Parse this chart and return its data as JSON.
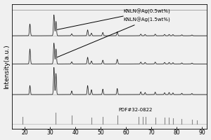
{
  "title": "",
  "xlabel": "",
  "ylabel": "Intensity(a.u.)",
  "xlim": [
    15,
    92
  ],
  "background_color": "#f0f0f0",
  "label1": "KNLN@Ag(0.5wt%)",
  "label2": "KNLN@Ag(1.5wt%)",
  "label3": "PDF#32-0822",
  "tick_fontsize": 5.5,
  "label_fontsize": 6.5,
  "annotation_fontsize": 5.0,
  "peaks_all": [
    22.0,
    31.5,
    32.3,
    38.5,
    44.8,
    46.3,
    50.8,
    56.5,
    65.8,
    67.5,
    71.5,
    75.2,
    77.0,
    78.5,
    82.0,
    86.0
  ],
  "heights1": [
    1.8,
    3.2,
    2.2,
    0.3,
    0.9,
    0.4,
    0.5,
    0.6,
    0.25,
    0.2,
    0.25,
    0.2,
    0.2,
    0.18,
    0.15,
    0.12
  ],
  "heights2": [
    1.8,
    2.5,
    1.8,
    0.25,
    0.8,
    0.35,
    0.45,
    0.55,
    0.22,
    0.18,
    0.22,
    0.18,
    0.18,
    0.15,
    0.12,
    0.1
  ],
  "heights3": [
    1.5,
    4.5,
    3.5,
    0.6,
    1.5,
    0.8,
    0.9,
    1.0,
    0.45,
    0.35,
    0.4,
    0.3,
    0.35,
    0.28,
    0.22,
    0.18
  ],
  "pdf_peaks": [
    19.0,
    32.0,
    38.5,
    46.2,
    50.8,
    56.5,
    65.0,
    66.5,
    67.8,
    71.5,
    75.2,
    77.0,
    78.5,
    82.0,
    86.0,
    88.0
  ],
  "pdf_heights": [
    0.06,
    0.09,
    0.07,
    0.05,
    0.06,
    0.07,
    0.055,
    0.06,
    0.055,
    0.05,
    0.05,
    0.05,
    0.045,
    0.04,
    0.035,
    0.03
  ]
}
